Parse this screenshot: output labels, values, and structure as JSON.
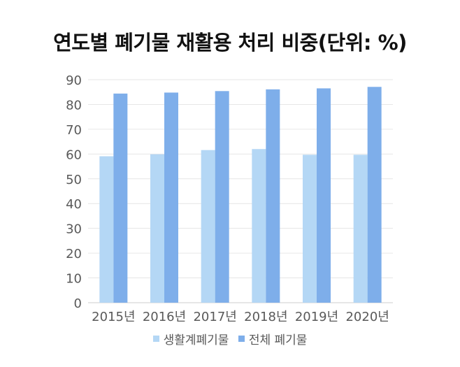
{
  "colors": {
    "household": "#b4d7f5",
    "total": "#7eaeea",
    "grid": "#e6e6e6",
    "axis": "#cccccc"
  },
  "chart_data": {
    "type": "bar",
    "title": "연도별 폐기물 재활용 처리 비중(단위: %)",
    "categories": [
      "2015년",
      "2016년",
      "2017년",
      "2018년",
      "2019년",
      "2020년"
    ],
    "series": [
      {
        "name": "생활계폐기물",
        "values": [
          59.1,
          59.9,
          61.6,
          62.0,
          59.7,
          59.7
        ]
      },
      {
        "name": "전체 폐기물",
        "values": [
          84.4,
          84.8,
          85.4,
          86.1,
          86.5,
          87.1
        ]
      }
    ],
    "ylim": [
      0,
      90
    ],
    "yticks": [
      0,
      10,
      20,
      30,
      40,
      50,
      60,
      70,
      80,
      90
    ],
    "grid": true,
    "legend": "bottom"
  }
}
